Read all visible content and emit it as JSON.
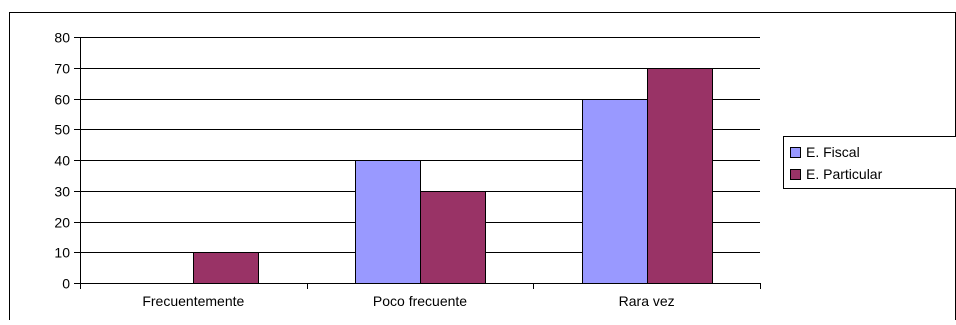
{
  "chart_data": {
    "type": "bar",
    "categories": [
      "Frecuentemente",
      "Poco frecuente",
      "Rara vez"
    ],
    "series": [
      {
        "name": "E. Fiscal",
        "values": [
          0,
          40,
          60
        ],
        "color": "#9999ff"
      },
      {
        "name": "E. Particular",
        "values": [
          10,
          30,
          70
        ],
        "color": "#993366"
      }
    ],
    "ylim": [
      0,
      80
    ],
    "yticks": [
      "0",
      "10",
      "20",
      "30",
      "40",
      "50",
      "60",
      "70",
      "80"
    ],
    "grid": true,
    "legend_position": "right"
  }
}
